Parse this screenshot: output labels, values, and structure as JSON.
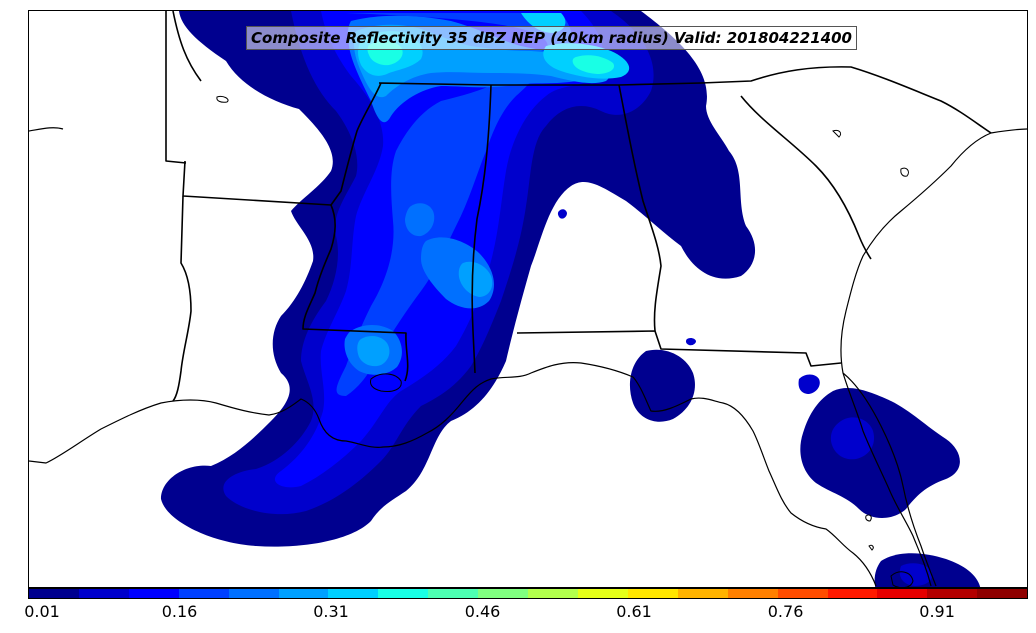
{
  "title": "Composite Reflectivity 35 dBZ NEP (40km radius) Valid: 201804221400",
  "colorbar": {
    "tick_labels": [
      "0.01",
      "0.16",
      "0.31",
      "0.46",
      "0.61",
      "0.76",
      "0.91"
    ],
    "tick_values": [
      0.01,
      0.16,
      0.31,
      0.46,
      0.61,
      0.76,
      0.91
    ],
    "range": [
      0.01,
      1.0
    ],
    "colors": [
      "#00008f",
      "#0000cc",
      "#0000ff",
      "#0040ff",
      "#0070ff",
      "#00a0ff",
      "#00d0ff",
      "#19ffe5",
      "#4dffb2",
      "#80ff80",
      "#b2ff4d",
      "#e5ff19",
      "#ffe600",
      "#ffb300",
      "#ff8000",
      "#ff4d00",
      "#ff1a00",
      "#e60000",
      "#b30000",
      "#8f0000"
    ]
  },
  "map": {
    "region": "Southeastern United States",
    "background_color": "#ffffff",
    "boundary_color": "#000000"
  }
}
